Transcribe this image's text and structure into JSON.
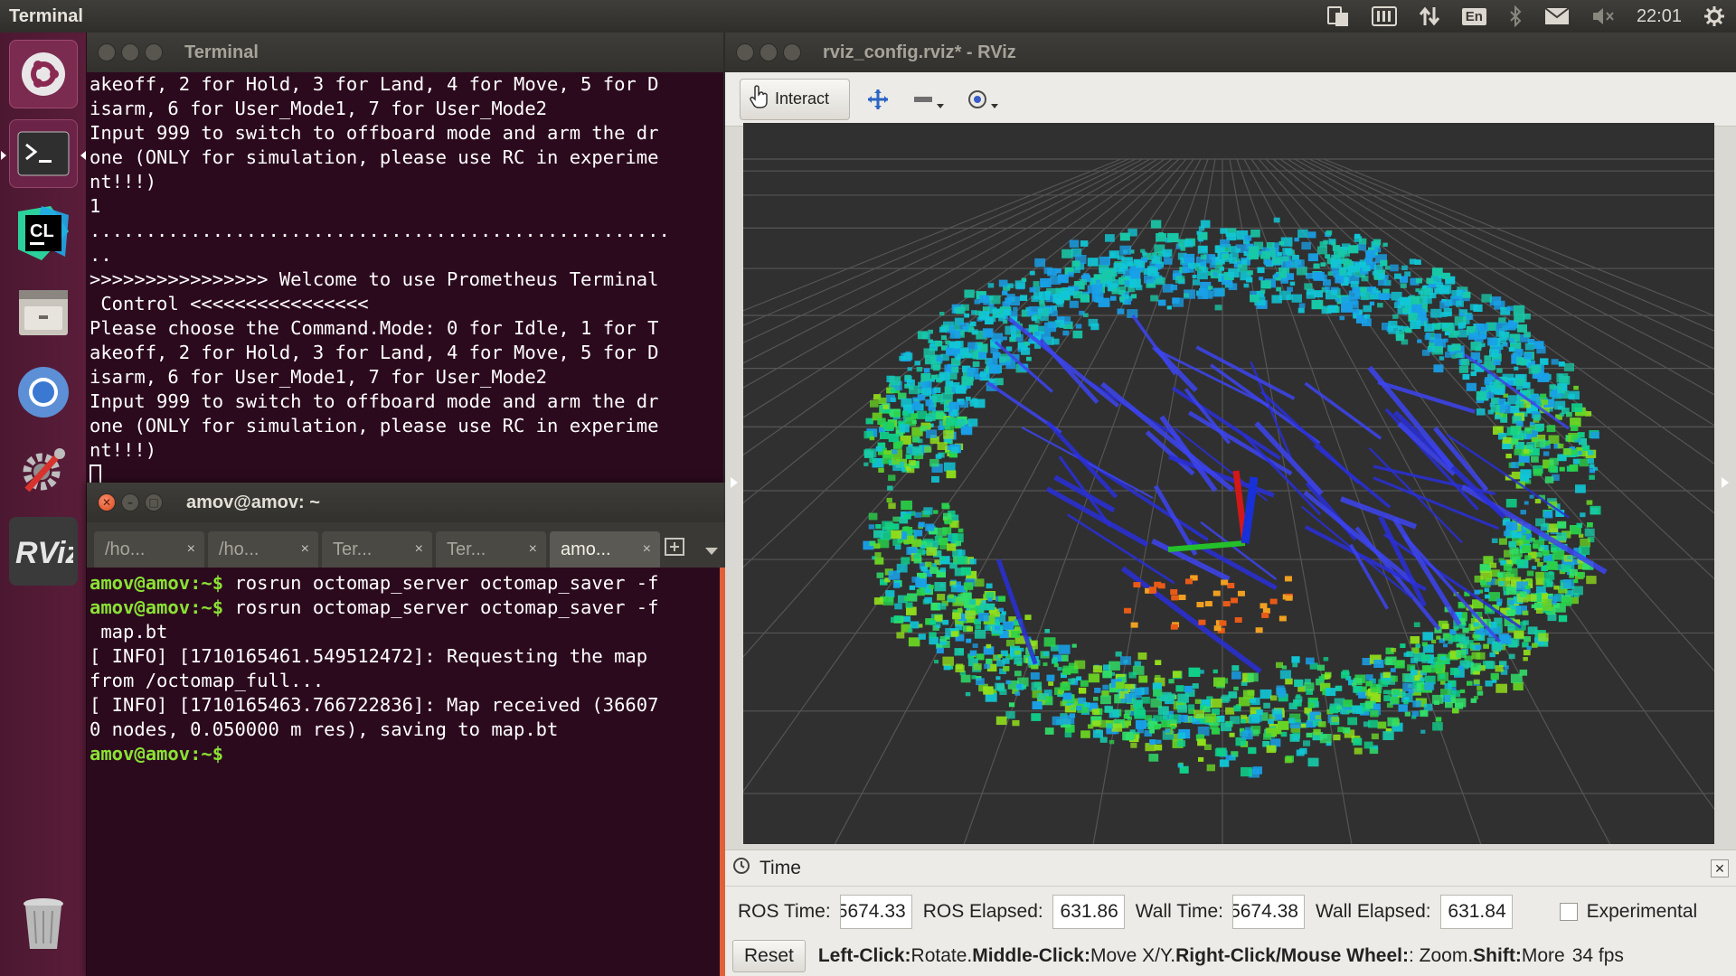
{
  "top_panel": {
    "app_title": "Terminal",
    "clock": "22:01",
    "keyboard_layout": "En",
    "icons": [
      "clipboard-icon",
      "indicator-icon",
      "network-icon",
      "keyboard-icon",
      "bluetooth-icon",
      "mail-icon",
      "volume-muted-icon",
      "settings-gear-icon"
    ]
  },
  "launcher": {
    "items": [
      "ubuntu-dash",
      "terminal",
      "clion",
      "files",
      "chromium",
      "system-settings",
      "rviz",
      "trash"
    ]
  },
  "terminal1": {
    "title": "Terminal",
    "lines": [
      "akeoff, 2 for Hold, 3 for Land, 4 for Move, 5 for D",
      "isarm, 6 for User_Mode1, 7 for User_Mode2",
      "Input 999 to switch to offboard mode and arm the dr",
      "one (ONLY for simulation, please use RC in experime",
      "nt!!!)",
      "1",
      "....................................................",
      "..",
      ">>>>>>>>>>>>>>>> Welcome to use Prometheus Terminal",
      " Control <<<<<<<<<<<<<<<<",
      "Please choose the Command.Mode: 0 for Idle, 1 for T",
      "akeoff, 2 for Hold, 3 for Land, 4 for Move, 5 for D",
      "isarm, 6 for User_Mode1, 7 for User_Mode2",
      "Input 999 to switch to offboard mode and arm the dr",
      "one (ONLY for simulation, please use RC in experime",
      "nt!!!)"
    ]
  },
  "terminal2": {
    "title": "amov@amov: ~",
    "tabs": [
      {
        "label": "/ho...",
        "close": "×"
      },
      {
        "label": "/ho...",
        "close": "×"
      },
      {
        "label": "Ter...",
        "close": "×"
      },
      {
        "label": "Ter...",
        "close": "×"
      },
      {
        "label": "amo...",
        "close": "×"
      }
    ],
    "prompt": "amov@amov:~$",
    "lines": [
      {
        "prompt": "amov@amov:~$",
        "text": " rosrun octomap_server octomap_saver -f"
      },
      {
        "prompt": "amov@amov:~$",
        "text": " rosrun octomap_server octomap_saver -f"
      },
      {
        "prompt": "",
        "text": " map.bt"
      },
      {
        "prompt": "",
        "text": "[ INFO] [1710165461.549512472]: Requesting the map"
      },
      {
        "prompt": "",
        "text": "from /octomap_full..."
      },
      {
        "prompt": "",
        "text": "[ INFO] [1710165463.766722836]: Map received (36607"
      },
      {
        "prompt": "",
        "text": "0 nodes, 0.050000 m res), saving to map.bt"
      },
      {
        "prompt": "amov@amov:~$",
        "text": ""
      }
    ]
  },
  "rviz": {
    "title": "rviz_config.rviz* - RViz",
    "toolbar": {
      "interact_label": "Interact",
      "icons": [
        "pointer-hand-icon",
        "move-camera-icon",
        "select-icon",
        "focus-camera-icon"
      ]
    },
    "time_panel": {
      "title": "Time",
      "ros_time_label": "ROS Time:",
      "ros_time_value": "5674.33",
      "ros_elapsed_label": "ROS Elapsed:",
      "ros_elapsed_value": "631.86",
      "wall_time_label": "Wall Time:",
      "wall_time_value": "5674.38",
      "wall_elapsed_label": "Wall Elapsed:",
      "wall_elapsed_value": "631.84",
      "experimental_label": "Experimental",
      "experimental_checked": false
    },
    "status": {
      "reset_label": "Reset",
      "left_click_key": "Left-Click:",
      "left_click_action": " Rotate. ",
      "middle_click_key": "Middle-Click:",
      "middle_click_action": " Move X/Y. ",
      "right_click_key": "Right-Click/Mouse Wheel:",
      "right_click_action": ": Zoom. ",
      "shift_key": "Shift:",
      "shift_action": " More",
      "fps": "34 fps"
    }
  },
  "colors": {
    "launcher_bg": "#5a1d3a",
    "terminal_bg": "#2c0a1e",
    "prompt_green": "#8ae234",
    "viewport_bg": "#303030",
    "panel_bg": "#3c3b37"
  }
}
